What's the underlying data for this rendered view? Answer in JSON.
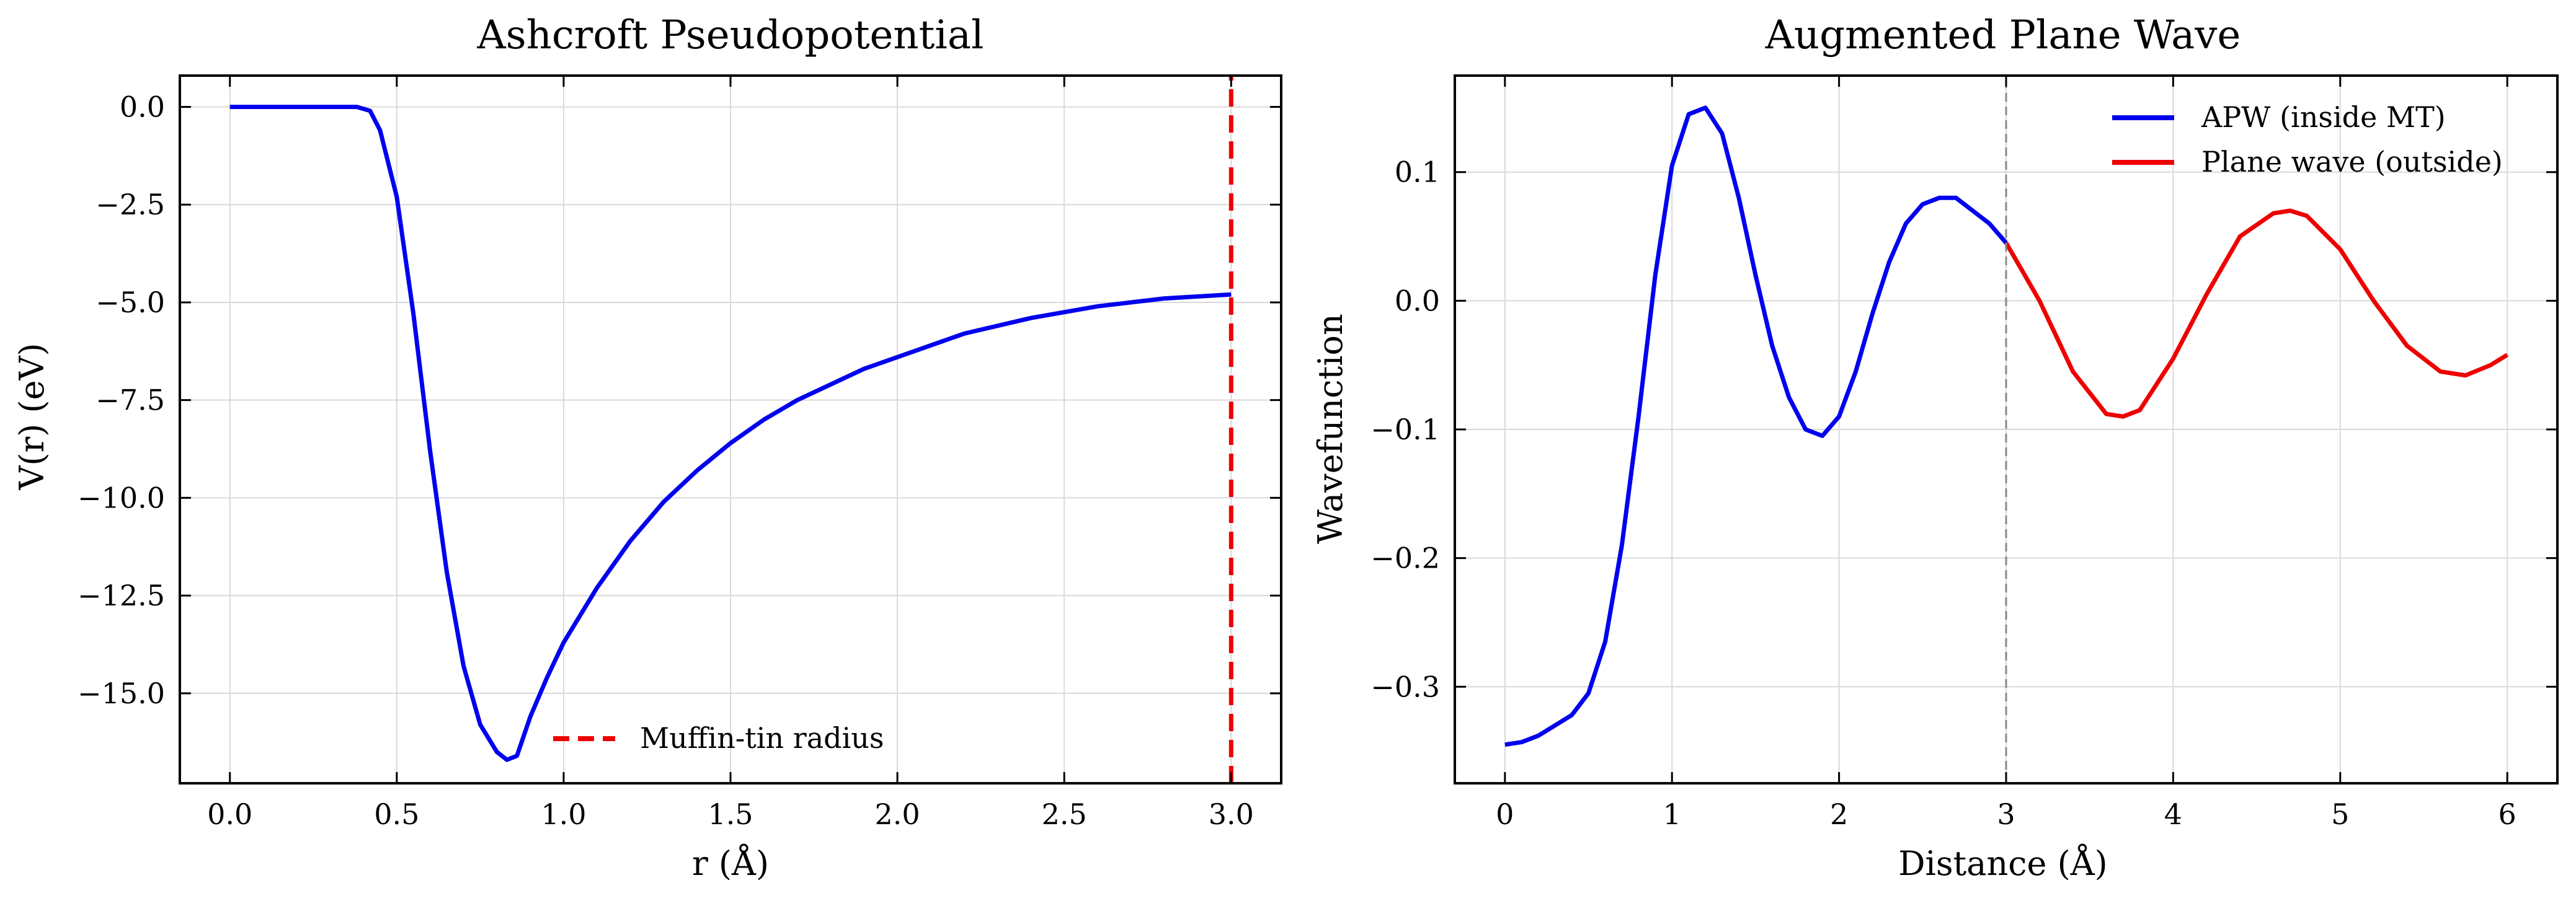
{
  "chart_data": [
    {
      "type": "line",
      "title": "Ashcroft Pseudopotential",
      "xlabel": "r (Å)",
      "ylabel": "V(r) (eV)",
      "xlim": [
        -0.15,
        3.15
      ],
      "ylim": [
        -17.3,
        0.8
      ],
      "xticks": [
        0.0,
        0.5,
        1.0,
        1.5,
        2.0,
        2.5,
        3.0
      ],
      "xtick_labels": [
        "0.0",
        "0.5",
        "1.0",
        "1.5",
        "2.0",
        "2.5",
        "3.0"
      ],
      "yticks": [
        0.0,
        -2.5,
        -5.0,
        -7.5,
        -10.0,
        -12.5,
        -15.0
      ],
      "ytick_labels": [
        "0.0",
        "−2.5",
        "−5.0",
        "−7.5",
        "−10.0",
        "−12.5",
        "−15.0"
      ],
      "grid": true,
      "legend_position": "lower-center",
      "series": [
        {
          "color": "#0000ee",
          "style": "solid",
          "x": [
            0.0,
            0.1,
            0.2,
            0.3,
            0.38,
            0.42,
            0.45,
            0.5,
            0.55,
            0.6,
            0.65,
            0.7,
            0.75,
            0.8,
            0.83,
            0.86,
            0.9,
            0.95,
            1.0,
            1.1,
            1.2,
            1.3,
            1.4,
            1.5,
            1.6,
            1.7,
            1.8,
            1.9,
            2.0,
            2.2,
            2.4,
            2.6,
            2.8,
            3.0
          ],
          "y": [
            0.0,
            0.0,
            0.0,
            0.0,
            0.0,
            -0.1,
            -0.6,
            -2.3,
            -5.3,
            -8.8,
            -11.9,
            -14.3,
            -15.8,
            -16.5,
            -16.7,
            -16.6,
            -15.6,
            -14.6,
            -13.7,
            -12.3,
            -11.1,
            -10.1,
            -9.3,
            -8.6,
            -8.0,
            -7.5,
            -7.1,
            -6.7,
            -6.4,
            -5.8,
            -5.4,
            -5.1,
            -4.9,
            -4.8
          ]
        },
        {
          "name": "Muffin-tin radius",
          "color": "#ee0000",
          "style": "dashed",
          "x": [
            3.0,
            3.0
          ],
          "y": [
            -17.3,
            0.8
          ]
        }
      ]
    },
    {
      "type": "line",
      "title": "Augmented Plane Wave",
      "xlabel": "Distance (Å)",
      "ylabel": "Wavefunction",
      "xlim": [
        -0.3,
        6.3
      ],
      "ylim": [
        -0.375,
        0.175
      ],
      "xticks": [
        0,
        1,
        2,
        3,
        4,
        5,
        6
      ],
      "xtick_labels": [
        "0",
        "1",
        "2",
        "3",
        "4",
        "5",
        "6"
      ],
      "yticks": [
        0.1,
        0.0,
        -0.1,
        -0.2,
        -0.3
      ],
      "ytick_labels": [
        "0.1",
        "0.0",
        "−0.1",
        "−0.2",
        "−0.3"
      ],
      "grid": true,
      "legend_position": "top-right",
      "series": [
        {
          "name": "APW (inside MT)",
          "color": "#0000ee",
          "style": "solid",
          "x": [
            0.0,
            0.1,
            0.2,
            0.3,
            0.4,
            0.5,
            0.6,
            0.7,
            0.8,
            0.9,
            1.0,
            1.1,
            1.2,
            1.3,
            1.4,
            1.5,
            1.6,
            1.7,
            1.8,
            1.9,
            2.0,
            2.1,
            2.2,
            2.3,
            2.4,
            2.5,
            2.6,
            2.7,
            2.8,
            2.9,
            3.0
          ],
          "y": [
            -0.345,
            -0.343,
            -0.338,
            -0.33,
            -0.322,
            -0.305,
            -0.265,
            -0.19,
            -0.09,
            0.02,
            0.105,
            0.145,
            0.15,
            0.13,
            0.08,
            0.02,
            -0.035,
            -0.075,
            -0.1,
            -0.105,
            -0.09,
            -0.055,
            -0.01,
            0.03,
            0.06,
            0.075,
            0.08,
            0.08,
            0.07,
            0.06,
            0.045
          ]
        },
        {
          "name": "Plane wave (outside)",
          "color": "#ee0000",
          "style": "solid",
          "x": [
            3.0,
            3.2,
            3.4,
            3.6,
            3.7,
            3.8,
            4.0,
            4.2,
            4.4,
            4.6,
            4.7,
            4.8,
            5.0,
            5.2,
            5.4,
            5.6,
            5.75,
            5.9,
            6.0
          ],
          "y": [
            0.045,
            0.0,
            -0.055,
            -0.088,
            -0.09,
            -0.085,
            -0.045,
            0.005,
            0.05,
            0.068,
            0.07,
            0.066,
            0.04,
            0.0,
            -0.035,
            -0.055,
            -0.058,
            -0.05,
            -0.042
          ]
        },
        {
          "color": "#888888",
          "style": "thin-dashed",
          "x": [
            3.0,
            3.0
          ],
          "y": [
            -0.375,
            0.175
          ]
        }
      ]
    }
  ]
}
